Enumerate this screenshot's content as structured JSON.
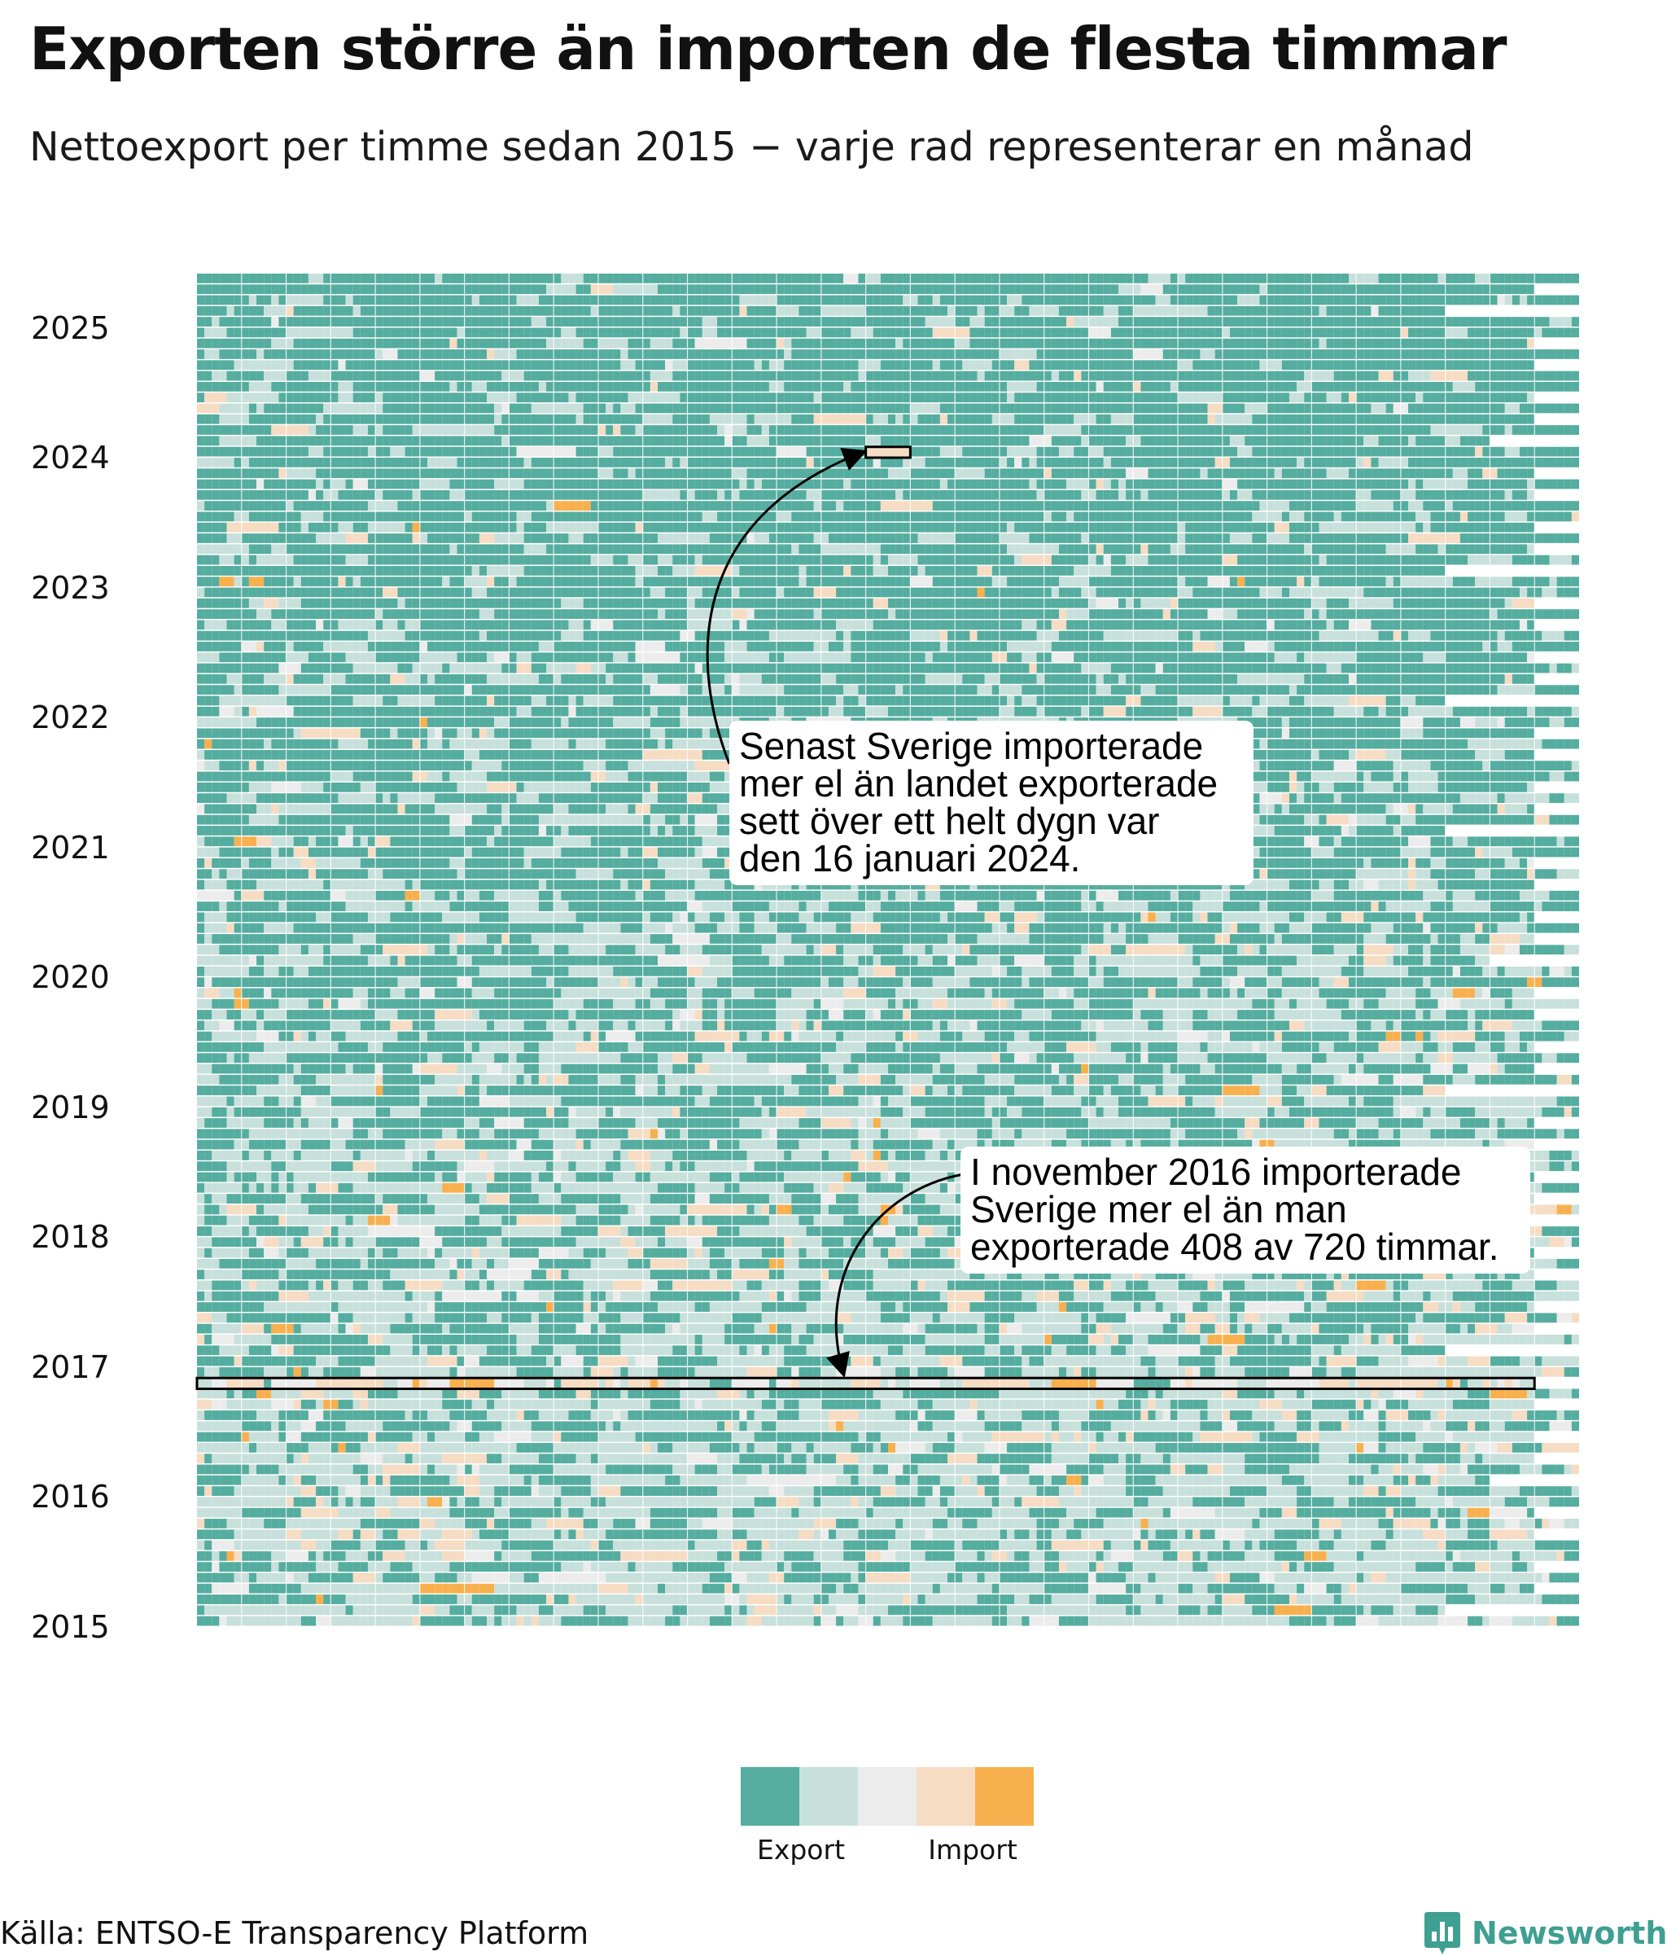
{
  "title": "Exporten större än importen de flesta timmar",
  "subtitle": "Nettoexport per timme sedan 2015 − varje rad representerar en månad",
  "chart_data": {
    "type": "heatmap",
    "description_x": "timme i månaden (1–744)",
    "description_y": "månad, jan 2015 – maj 2025",
    "y_ticks": [
      "2015",
      "2016",
      "2017",
      "2018",
      "2019",
      "2020",
      "2021",
      "2022",
      "2023",
      "2024",
      "2025"
    ],
    "start_year": 2015,
    "months": 125,
    "max_hours": 744,
    "legend": {
      "colors": [
        "#55ad9f",
        "#c8e0db",
        "#ececec",
        "#f6dcc3",
        "#f8b04e"
      ],
      "low_label": "Export",
      "high_label": "Import"
    },
    "annotations": [
      {
        "text_lines": [
          "Senast Sverige importerade",
          "mer el än landet exporterade",
          "sett över ett helt dygn var",
          "den 16 januari 2024."
        ],
        "year": 2024,
        "month": 1,
        "day": 16
      },
      {
        "text_lines": [
          "I november 2016 importerade",
          "Sverige mer el än man",
          "exporterade 408 av 720 timmar."
        ],
        "year": 2016,
        "month": 11,
        "import_hours": 408,
        "total_hours": 720
      }
    ]
  },
  "source": "Källa: ENTSO-E Transparency Platform",
  "brand": "Newsworthy"
}
